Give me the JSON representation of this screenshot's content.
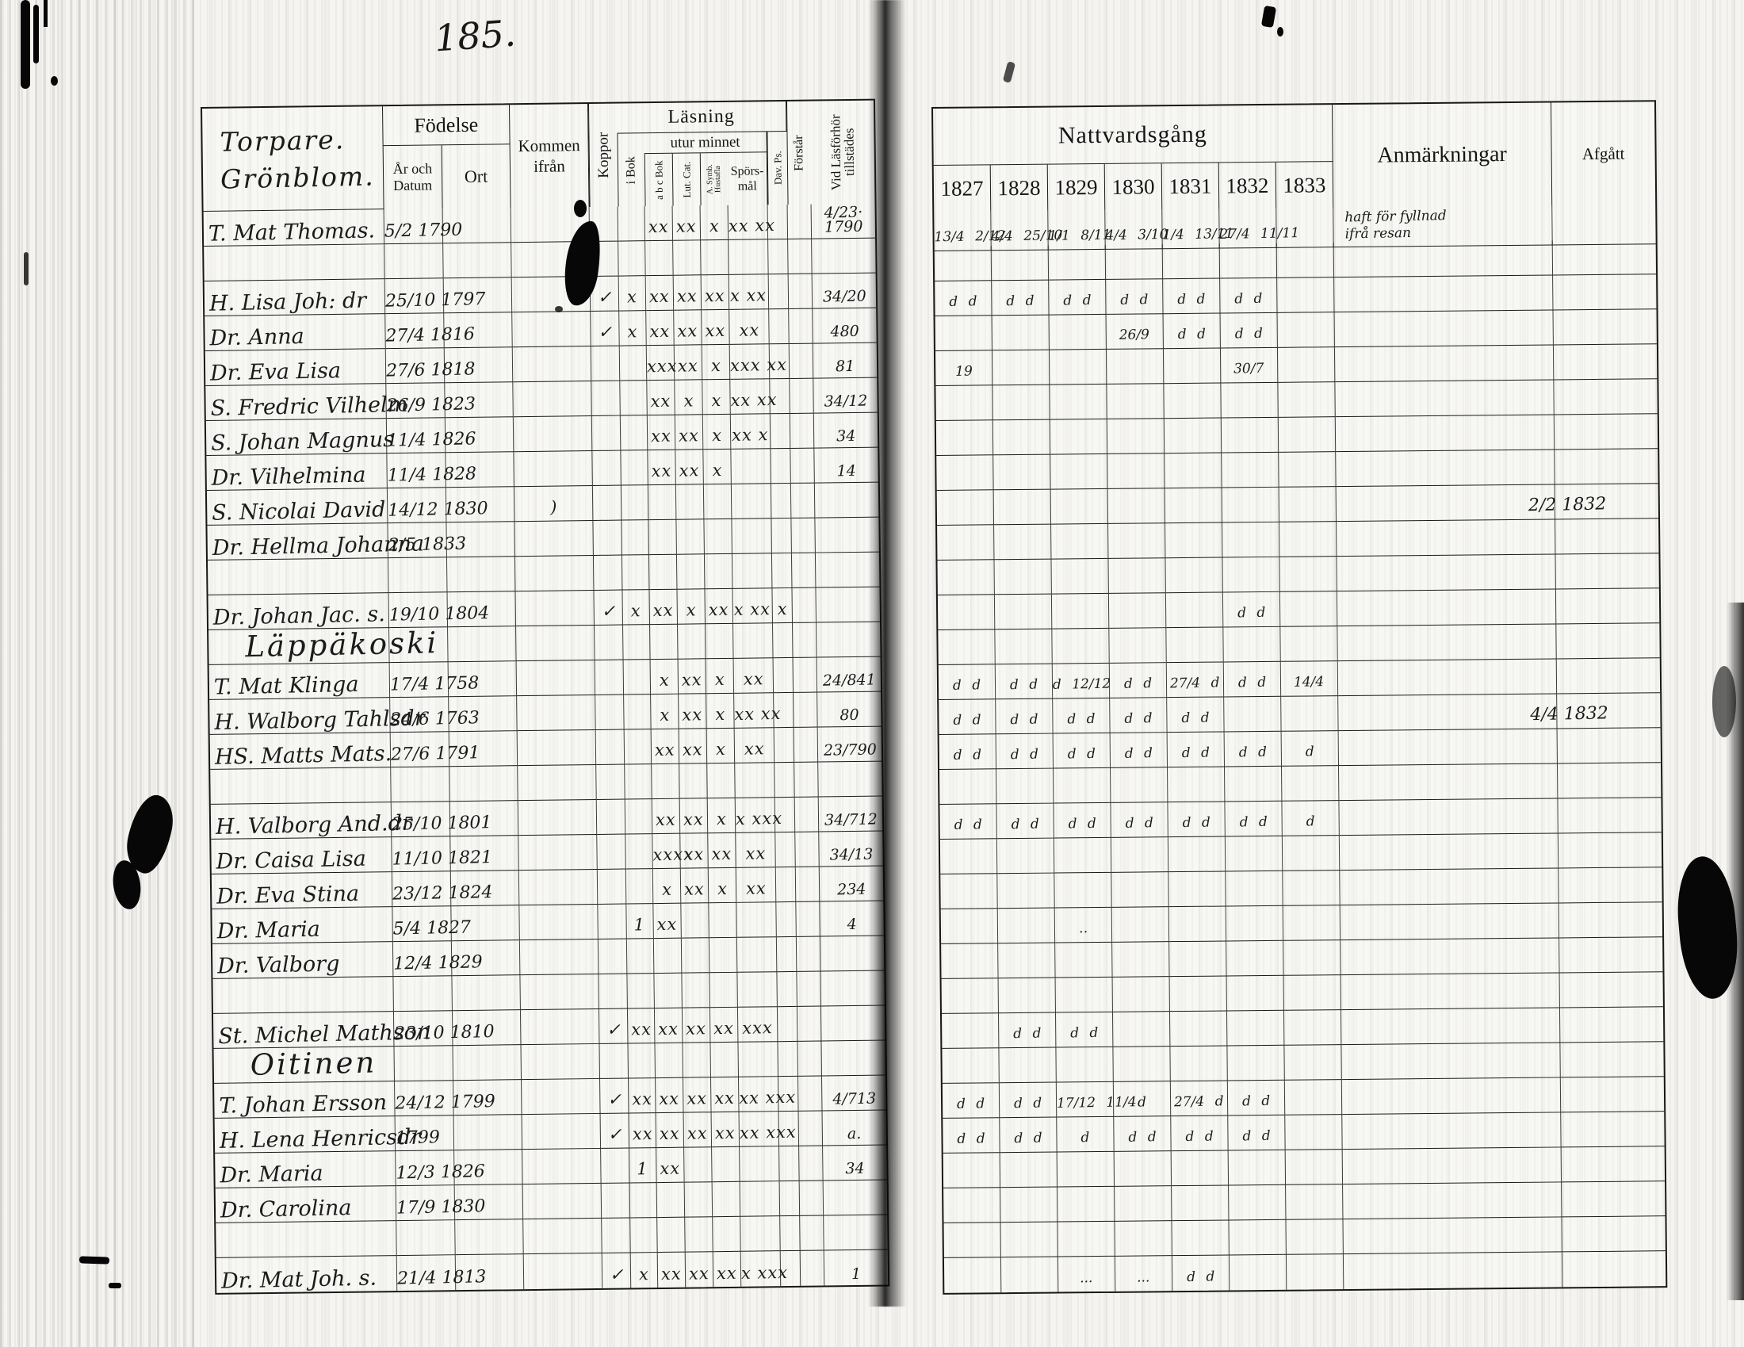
{
  "page_number": "185.",
  "colors": {
    "paper": "#f5f4f1",
    "ink": "#151515"
  },
  "left_page": {
    "title_lines": [
      "Torpare.",
      "Grönblom."
    ],
    "headers": {
      "fodelse": "Födelse",
      "ar_och_datum": "År och\nDatum",
      "ort": "Ort",
      "kommen_ifran": "Kommen\nifrån",
      "koppor": "Koppor",
      "lasning": "Läsning",
      "i_bok": "i Bok",
      "utur_minnet": "utur minnet",
      "abc_bok": "a b c Bok",
      "lut_cat": "Lut. Cat.",
      "hustafla": "A. Symb.\nHustafla",
      "sporsmal": "Spörs-\nmål",
      "dav_ps": "Dav. Ps.",
      "forstar": "Förstår",
      "tillstades": "Vid Läsförhör\ntillstädes"
    },
    "rows": [
      {
        "name": "T. Mat Thomas.",
        "date": "5/2 1790",
        "abc": "xx",
        "lut": "xx",
        "hust": "x",
        "spors": "xx xx",
        "tillst": "4/23·\n1790"
      },
      {},
      {
        "name": "H. Lisa Joh: dr",
        "date": "25/10 1797",
        "koppor": "✓",
        "ibok": "x",
        "abc": "xx",
        "lut": "xx",
        "hust": "xx",
        "spors": "x xx",
        "tillst": "34/20"
      },
      {
        "name": "Dr. Anna",
        "date": "27/4 1816",
        "koppor": "✓",
        "ibok": "x",
        "abc": "xx",
        "lut": "xx",
        "hust": "xx",
        "spors": "xx",
        "tillst": "480"
      },
      {
        "name": "Dr. Eva Lisa",
        "date": "27/6 1818",
        "abc": "xxx",
        "lut": "xx",
        "hust": "x",
        "spors": "xxx xx",
        "tillst": "81"
      },
      {
        "name": "S. Fredric Vilhelm",
        "date": "26/9 1823",
        "abc": "xx",
        "lut": "x",
        "hust": "x",
        "spors": "xx xx",
        "tillst": "34/12"
      },
      {
        "name": "S. Johan Magnus",
        "date": "11/4 1826",
        "abc": "xx",
        "lut": "xx",
        "hust": "x",
        "spors": "xx x",
        "tillst": "34"
      },
      {
        "name": "Dr. Vilhelmina",
        "date": "11/4 1828",
        "abc": "xx",
        "lut": "xx",
        "hust": "x",
        "tillst": "14"
      },
      {
        "name": "S. Nicolai David",
        "date": "14/12 1830",
        "kommen": ")"
      },
      {
        "name": "Dr. Hellma Johanna",
        "date": "2/5 1833"
      },
      {},
      {
        "name": "Dr. Johan Jac. s.",
        "date": "19/10 1804",
        "koppor": "✓",
        "ibok": "x",
        "abc": "xx",
        "lut": "x",
        "hust": "xx",
        "spors": "x xx",
        "dav": "x"
      },
      {
        "name": "Läppäkoski",
        "section": true
      },
      {
        "name": "T. Mat Klinga",
        "date": "17/4 1758",
        "abc": "x",
        "lut": "xx",
        "hust": "x",
        "spors": "xx",
        "tillst": "24/841"
      },
      {
        "name": "H. Walborg Tahlsdr",
        "date": "24/6 1763",
        "abc": "x",
        "lut": "xx",
        "hust": "x",
        "spors": "xx xx",
        "tillst": "80"
      },
      {
        "name": "HS. Matts Mats.",
        "date": "27/6 1791",
        "abc": "xx",
        "lut": "xx",
        "hust": "x",
        "spors": "xx",
        "tillst": "23/790"
      },
      {},
      {
        "name": "H. Valborg And.dr",
        "date": "25/10 1801",
        "abc": "xx",
        "lut": "xx",
        "hust": "x",
        "spors": "x xxx",
        "tillst": "34/712"
      },
      {
        "name": "Dr. Caisa Lisa",
        "date": "11/10 1821",
        "abc": "xxxx",
        "lut": "xx",
        "hust": "xx",
        "spors": "xx",
        "tillst": "34/13"
      },
      {
        "name": "Dr. Eva Stina",
        "date": "23/12 1824",
        "abc": "x",
        "lut": "xx",
        "hust": "x",
        "spors": "xx",
        "tillst": "234"
      },
      {
        "name": "Dr. Maria",
        "date": "5/4 1827",
        "ibok": "1",
        "abc": "xx",
        "tillst": "4"
      },
      {
        "name": "Dr. Valborg",
        "date": "12/4 1829"
      },
      {},
      {
        "name": "St. Michel Mathson",
        "date": "23/10 1810",
        "koppor": "✓",
        "ibok": "xx",
        "abc": "xx",
        "lut": "xx",
        "hust": "xx",
        "spors": "xxx"
      },
      {
        "name": "Oitinen",
        "section": true
      },
      {
        "name": "T. Johan Ersson",
        "date": "24/12 1799",
        "koppor": "✓",
        "ibok": "xx",
        "abc": "xx",
        "lut": "xx",
        "hust": "xx",
        "spors": "xx xxx",
        "tillst": "4/713"
      },
      {
        "name": "H. Lena Henricsdr",
        "date": "1799",
        "koppor": "✓",
        "ibok": "xx",
        "abc": "xx",
        "lut": "xx",
        "hust": "xx",
        "spors": "xx xxx",
        "tillst": "a."
      },
      {
        "name": "Dr. Maria",
        "date": "12/3 1826",
        "ibok": "1",
        "abc": "xx",
        "tillst": "34"
      },
      {
        "name": "Dr. Carolina",
        "date": "17/9 1830"
      },
      {},
      {
        "name": "Dr. Mat Joh. s.",
        "date": "21/4 1813",
        "koppor": "✓",
        "ibok": "x",
        "abc": "xx",
        "lut": "xx",
        "hust": "xx",
        "spors": "x xxx",
        "tillst": "1"
      }
    ]
  },
  "right_page": {
    "title": "Nattvardsgång",
    "years": [
      "1827",
      "1828",
      "1829",
      "1830",
      "1831",
      "1832",
      "1833"
    ],
    "anmarkningar_label": "Anmärkningar",
    "afgatt_label": "Afgått",
    "rows": [
      {
        "marks": [
          "13/4 2/12",
          "4/4 25/10",
          "1/1 8/11",
          "4/4 3/10",
          "1/4 13/11",
          "27/4 11/11",
          ""
        ],
        "anm": "haft för fyllnad\nifrå resan"
      },
      {},
      {
        "marks": [
          "d d",
          "d d",
          "d d",
          "d d",
          "d d",
          "d d",
          ""
        ]
      },
      {
        "marks": [
          "",
          "",
          "",
          "26/9",
          "d d",
          "d d",
          ""
        ]
      },
      {
        "marks": [
          "19",
          "",
          "",
          "",
          "",
          "30/7",
          ""
        ]
      },
      {},
      {},
      {},
      {
        "afgatt": "2/2 1832"
      },
      {},
      {},
      {
        "marks": [
          "",
          "",
          "",
          "",
          "",
          "d d",
          ""
        ]
      },
      {},
      {
        "marks": [
          "d d",
          "d d",
          "d 12/12",
          "d d",
          "27/4 d",
          "d d",
          "14/4"
        ]
      },
      {
        "marks": [
          "d d",
          "d d",
          "d d",
          "d d",
          "d d",
          "",
          ""
        ],
        "afgatt": "4/4 1832"
      },
      {
        "marks": [
          "d d",
          "d d",
          "d d",
          "d d",
          "d d",
          "d d",
          "d"
        ]
      },
      {},
      {
        "marks": [
          "d d",
          "d d",
          "d d",
          "d d",
          "d d",
          "d d",
          "d"
        ]
      },
      {},
      {},
      {
        "marks": [
          "",
          "",
          "‥",
          "",
          "",
          "",
          ""
        ]
      },
      {},
      {},
      {
        "marks": [
          "",
          "d d",
          "d d",
          "",
          "",
          "",
          ""
        ]
      },
      {},
      {
        "marks": [
          "d d",
          "d d",
          "17/12 11/4",
          "d",
          "27/4 d",
          "d d",
          ""
        ]
      },
      {
        "marks": [
          "d d",
          "d d",
          "d",
          "d d",
          "d d",
          "d d",
          ""
        ]
      },
      {},
      {},
      {},
      {
        "marks": [
          "",
          "",
          "...",
          "...",
          "d d",
          "",
          ""
        ]
      }
    ]
  }
}
